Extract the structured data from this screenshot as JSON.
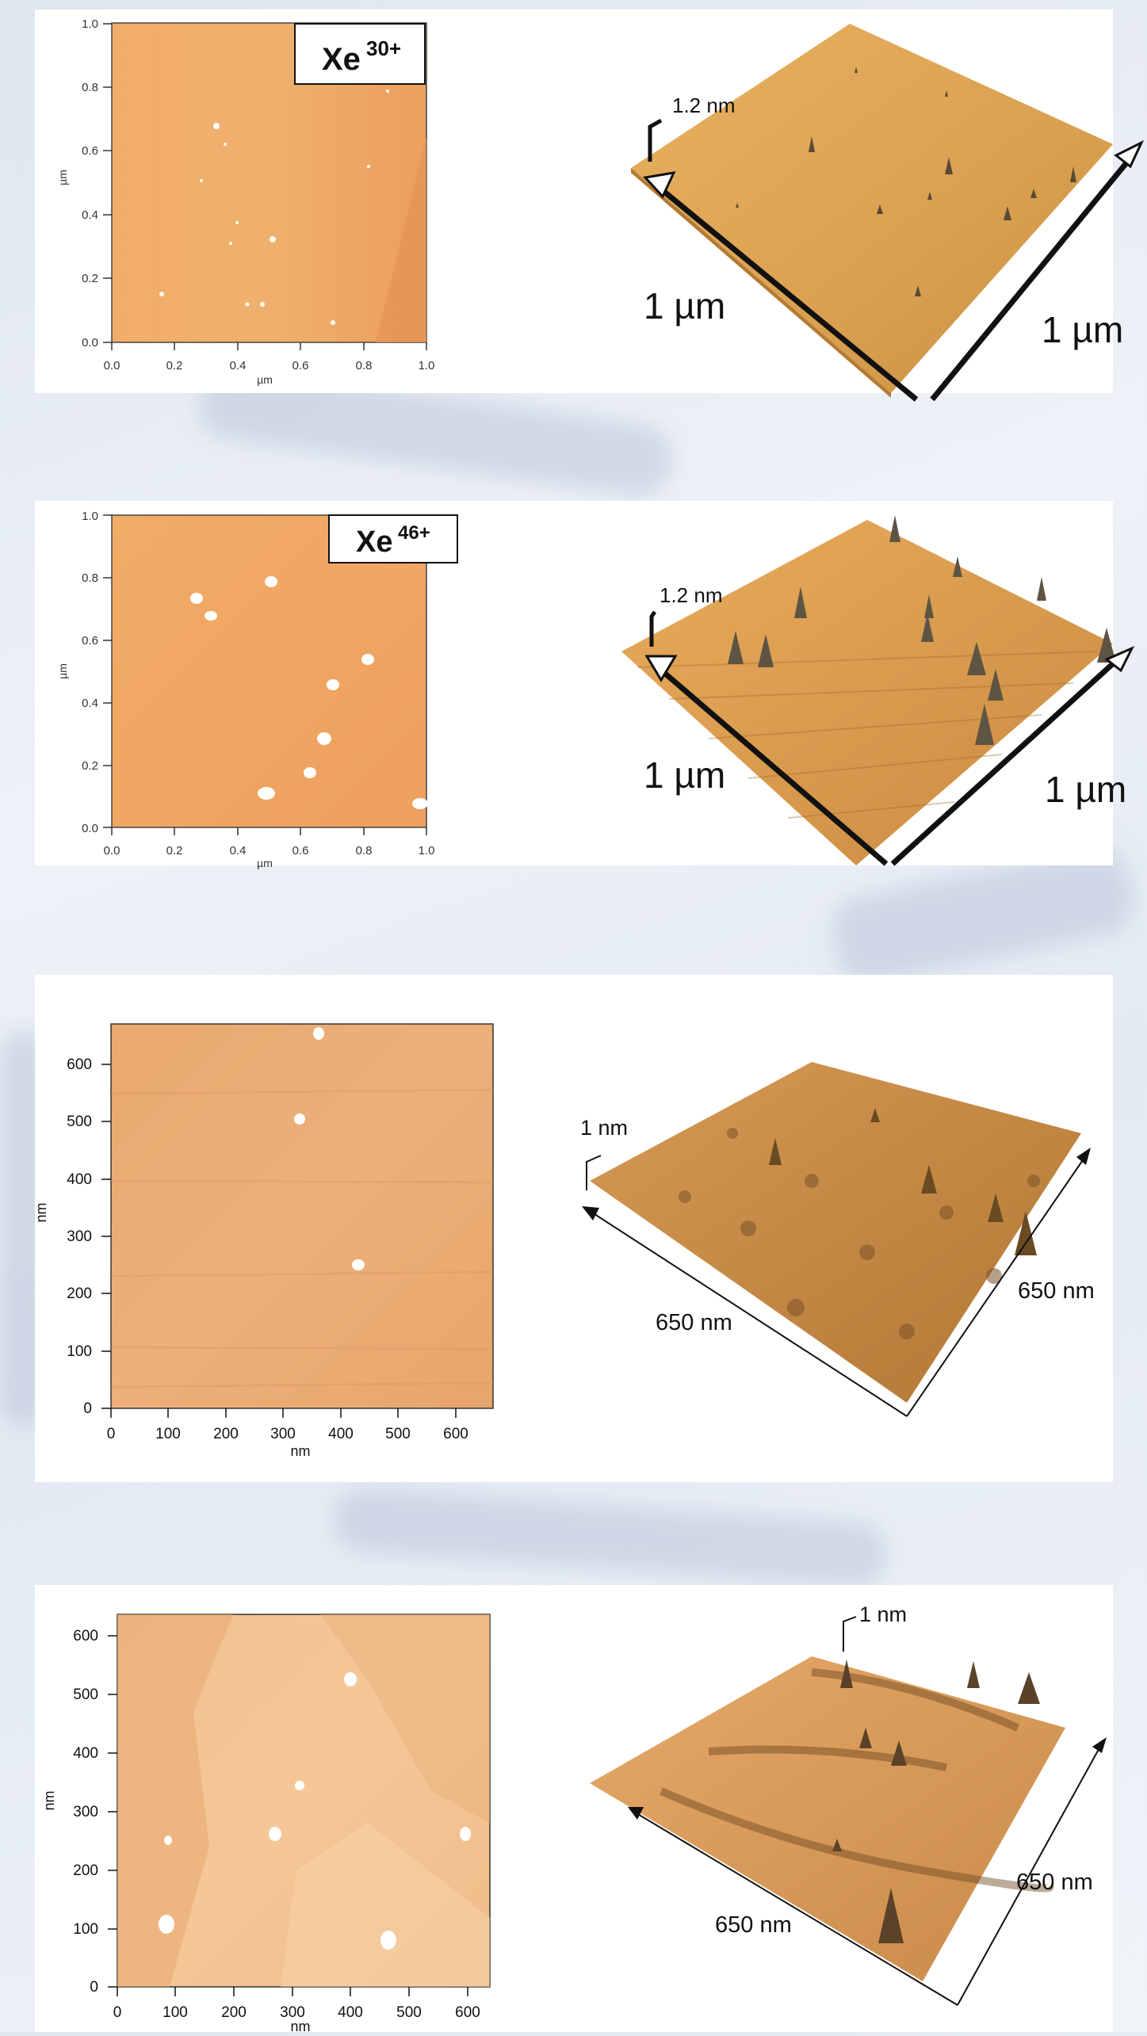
{
  "panels": [
    {
      "label_ion": "Xe",
      "label_charge": "30+",
      "map_axis_unit": "µm",
      "map_ticks_x": [
        "0.0",
        "0.2",
        "0.4",
        "0.6",
        "0.8",
        "1.0"
      ],
      "map_ticks_y": [
        "0.0",
        "0.2",
        "0.4",
        "0.6",
        "0.8",
        "1.0"
      ],
      "height_label": "1.2 nm",
      "side_left": "1 µm",
      "side_right": "1 µm"
    },
    {
      "label_ion": "Xe",
      "label_charge": "46+",
      "map_axis_unit": "µm",
      "map_ticks_x": [
        "0.0",
        "0.2",
        "0.4",
        "0.6",
        "0.8",
        "1.0"
      ],
      "map_ticks_y": [
        "0.0",
        "0.2",
        "0.4",
        "0.6",
        "0.8",
        "1.0"
      ],
      "height_label": "1.2 nm",
      "side_left": "1 µm",
      "side_right": "1 µm"
    },
    {
      "map_axis_unit": "nm",
      "map_ticks_x": [
        "0",
        "100",
        "200",
        "300",
        "400",
        "500",
        "600"
      ],
      "map_ticks_y": [
        "0",
        "100",
        "200",
        "300",
        "400",
        "500",
        "600"
      ],
      "height_label": "1 nm",
      "side_left": "650 nm",
      "side_right": "650 nm"
    },
    {
      "map_axis_unit": "nm",
      "map_ticks_x": [
        "0",
        "100",
        "200",
        "300",
        "400",
        "500",
        "600"
      ],
      "map_ticks_y": [
        "0",
        "100",
        "200",
        "300",
        "400",
        "500",
        "600"
      ],
      "height_label": "1 nm",
      "side_left": "650 nm",
      "side_right": "650 nm"
    }
  ]
}
